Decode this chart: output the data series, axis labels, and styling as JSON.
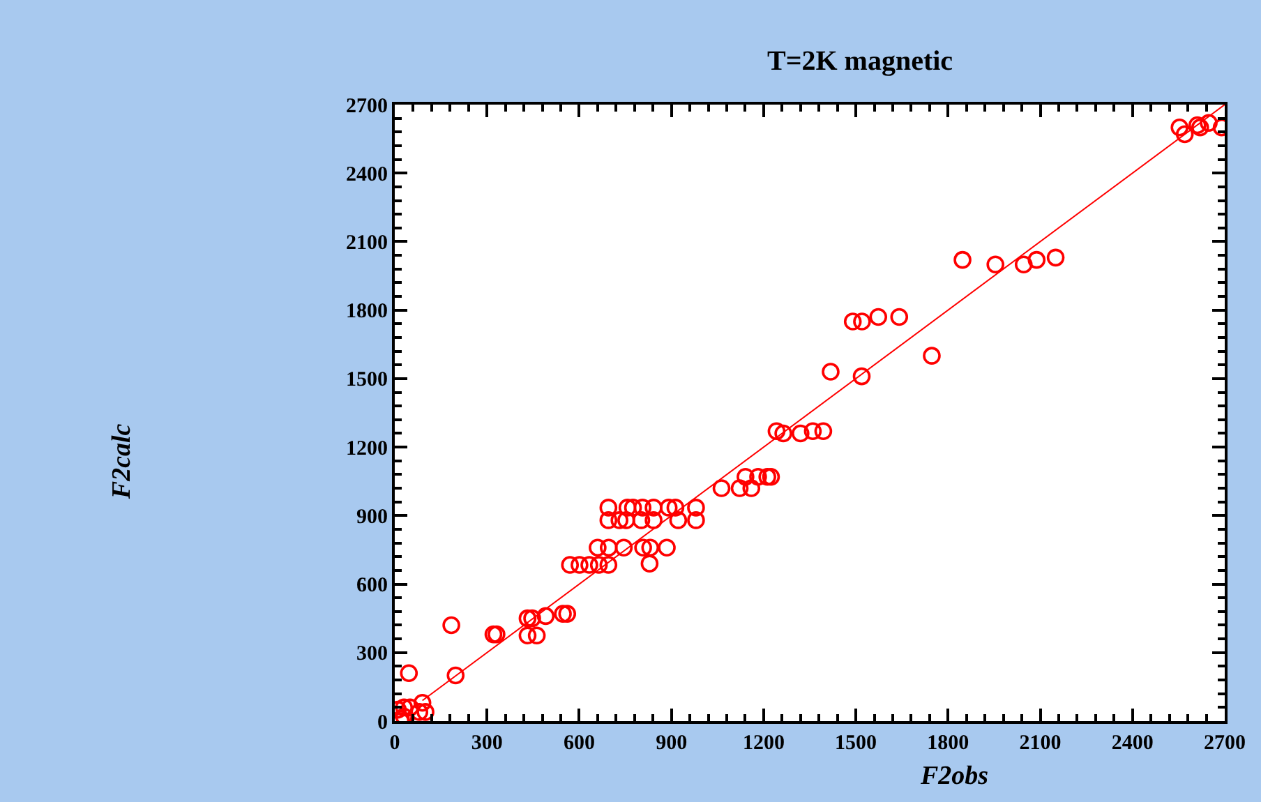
{
  "chart_data": {
    "type": "scatter",
    "title": "T=2K magnetic",
    "xlabel": "F2obs",
    "annotations": [
      "F2calc"
    ],
    "xlim": [
      0,
      2700
    ],
    "ylim": [
      0,
      2700
    ],
    "xticks": [
      0,
      300,
      600,
      900,
      1200,
      1500,
      1800,
      2100,
      2400,
      2700
    ],
    "yticks": [
      0,
      300,
      600,
      900,
      1200,
      1500,
      1800,
      2100,
      2400,
      2700
    ],
    "marker": "circle",
    "series": [
      {
        "color": "#ff0000",
        "x": [
          20,
          10,
          30,
          50,
          80,
          90,
          100,
          20,
          30,
          46,
          184,
          198,
          321,
          331,
          432,
          447,
          491,
          432,
          462,
          547,
          561,
          570,
          601,
          633,
          664,
          695,
          829,
          660,
          696,
          745,
          808,
          831,
          885,
          695,
          757,
          775,
          806,
          842,
          891,
          913,
          980,
          695,
          731,
          753,
          802,
          842,
          922,
          980,
          1063,
          1122,
          1160,
          1141,
          1182,
          1212,
          1224,
          1242,
          1264,
          1320,
          1360,
          1394,
          1418,
          1519,
          1747,
          1490,
          1520,
          1573,
          1641,
          1847,
          1954,
          2046,
          2088,
          2150,
          2553,
          2570,
          2611,
          2620,
          2648,
          2690
        ],
        "values": [
          10,
          50,
          60,
          60,
          40,
          80,
          40,
          0,
          20,
          210,
          420,
          200,
          380,
          380,
          450,
          450,
          460,
          375,
          375,
          470,
          470,
          684,
          684,
          684,
          684,
          684,
          690,
          760,
          760,
          760,
          760,
          760,
          760,
          935,
          935,
          935,
          935,
          935,
          935,
          935,
          935,
          880,
          880,
          880,
          880,
          880,
          880,
          880,
          1020,
          1020,
          1020,
          1070,
          1070,
          1070,
          1070,
          1270,
          1260,
          1260,
          1270,
          1270,
          1530,
          1510,
          1600,
          1750,
          1750,
          1770,
          1770,
          2020,
          2000,
          2000,
          2020,
          2030,
          2600,
          2570,
          2610,
          2600,
          2620,
          2600
        ]
      },
      {
        "type": "line",
        "color": "#ff0000",
        "line_style": "solid",
        "marker": "none",
        "x": [
          90,
          2700
        ],
        "values": [
          90,
          2700
        ]
      }
    ]
  }
}
